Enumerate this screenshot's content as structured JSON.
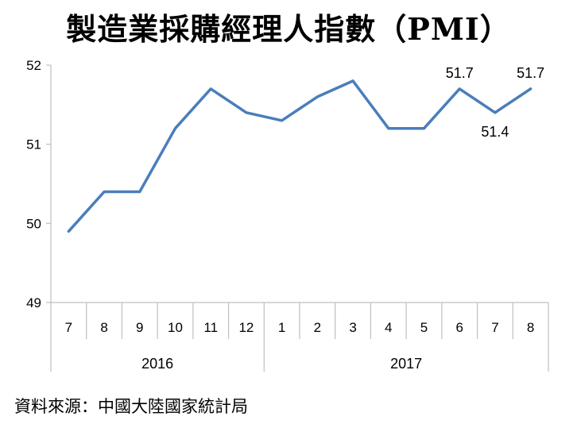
{
  "chart_data": {
    "type": "line",
    "title": "製造業採購經理人指數（PMI）",
    "categories": [
      "7",
      "8",
      "9",
      "10",
      "11",
      "12",
      "1",
      "2",
      "3",
      "4",
      "5",
      "6",
      "7",
      "8"
    ],
    "year_groups": [
      {
        "label": "2016",
        "count": 6
      },
      {
        "label": "2017",
        "count": 8
      }
    ],
    "series": [
      {
        "values": [
          49.9,
          50.4,
          50.4,
          51.2,
          51.7,
          51.4,
          51.3,
          51.6,
          51.8,
          51.2,
          51.2,
          51.7,
          51.4,
          51.7
        ]
      }
    ],
    "data_labels": [
      {
        "index": 11,
        "text": "51.7"
      },
      {
        "index": 12,
        "text": "51.4"
      },
      {
        "index": 13,
        "text": "51.7"
      }
    ],
    "ylim": [
      49,
      52
    ],
    "yticks": [
      "49",
      "50",
      "51",
      "52"
    ],
    "line_color": "#4a7ebb",
    "grid": false
  },
  "source": "資料來源：中國大陸國家統計局"
}
